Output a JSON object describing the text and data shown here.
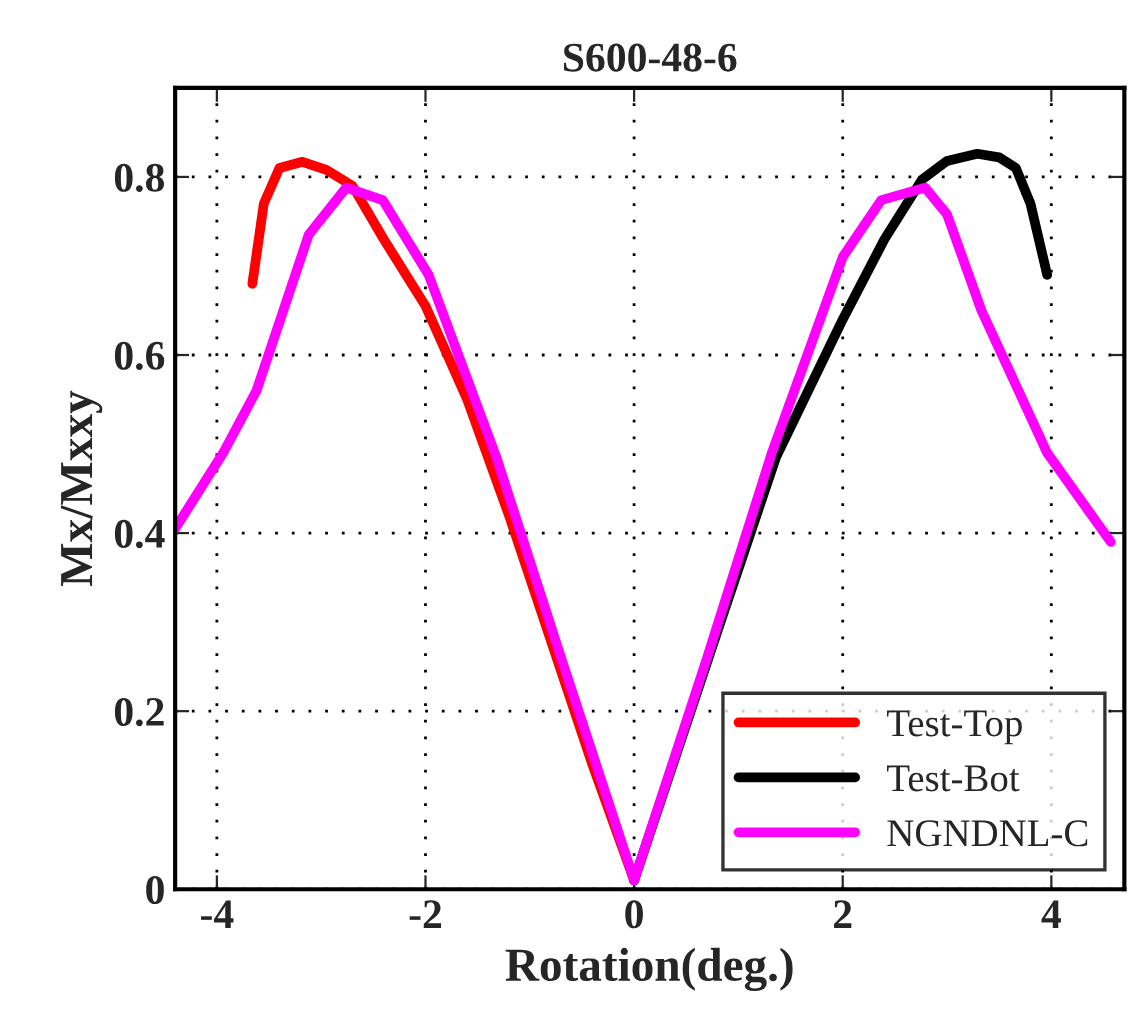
{
  "chart_data": {
    "type": "line",
    "title": "S600-48-6",
    "xlabel": "Rotation(deg.)",
    "ylabel": "Mx/Mxxy",
    "xlim": [
      -4.4,
      4.7
    ],
    "ylim": [
      0,
      0.9
    ],
    "xticks": [
      -4,
      -2,
      0,
      2,
      4
    ],
    "yticks": [
      0,
      0.2,
      0.4,
      0.6,
      0.8
    ],
    "grid": true,
    "legend": "bottom right",
    "line_style": "solid",
    "marker": "none",
    "series": [
      {
        "name": "Test-Top",
        "color": "#ff0000",
        "x": [
          -3.66,
          -3.55,
          -3.4,
          -3.18,
          -2.95,
          -2.7,
          -2.4,
          -2.0,
          -1.6,
          -1.2,
          -0.8,
          -0.4,
          0
        ],
        "values": [
          0.68,
          0.77,
          0.81,
          0.817,
          0.808,
          0.79,
          0.73,
          0.655,
          0.55,
          0.42,
          0.28,
          0.14,
          0.01
        ]
      },
      {
        "name": "Test-Bot",
        "color": "#000000",
        "x": [
          0,
          0.4,
          0.8,
          1.36,
          2.0,
          2.4,
          2.76,
          3.0,
          3.29,
          3.5,
          3.66,
          3.8,
          3.96
        ],
        "values": [
          0.01,
          0.15,
          0.29,
          0.485,
          0.64,
          0.73,
          0.797,
          0.818,
          0.826,
          0.822,
          0.81,
          0.77,
          0.69
        ]
      },
      {
        "name": "NGNDNL-C",
        "color": "#ff00ff",
        "x": [
          -4.4,
          -3.94,
          -3.62,
          -3.12,
          -2.76,
          -2.41,
          -1.97,
          -1.32,
          -0.7,
          0,
          0.7,
          1.32,
          2.0,
          2.37,
          2.79,
          3.0,
          3.33,
          3.96,
          4.57
        ],
        "values": [
          0.405,
          0.49,
          0.56,
          0.735,
          0.788,
          0.774,
          0.69,
          0.485,
          0.26,
          0.01,
          0.26,
          0.49,
          0.71,
          0.774,
          0.788,
          0.758,
          0.65,
          0.49,
          0.39
        ]
      }
    ]
  }
}
